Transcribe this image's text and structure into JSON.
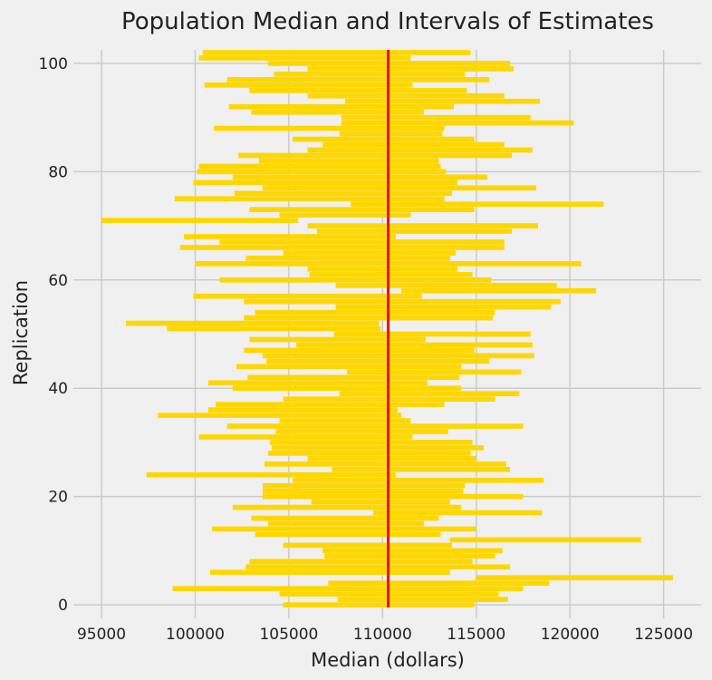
{
  "chart_data": {
    "type": "bar",
    "title": "Population Median and Intervals of Estimates",
    "xlabel": "Median (dollars)",
    "ylabel": "Replication",
    "xlim": [
      93500,
      127000
    ],
    "ylim": [
      -2.5,
      102.5
    ],
    "x_ticks": [
      95000,
      100000,
      105000,
      110000,
      115000,
      120000,
      125000
    ],
    "y_ticks": [
      0,
      20,
      40,
      60,
      80,
      100
    ],
    "grid": true,
    "legend": "none",
    "bar_color": "#FFD700",
    "reference_line": {
      "value": 110300,
      "color": "#ff0000"
    },
    "intervals": [
      [
        104700,
        114900
      ],
      [
        107600,
        116700
      ],
      [
        104500,
        116200
      ],
      [
        98800,
        117500
      ],
      [
        107100,
        118900
      ],
      [
        115000,
        125500
      ],
      [
        100800,
        113600
      ],
      [
        102700,
        116800
      ],
      [
        102900,
        114800
      ],
      [
        106900,
        116000
      ],
      [
        106800,
        116400
      ],
      [
        104700,
        113700
      ],
      [
        113600,
        123800
      ],
      [
        103200,
        113100
      ],
      [
        100900,
        115000
      ],
      [
        103900,
        112200
      ],
      [
        103000,
        113000
      ],
      [
        109500,
        118500
      ],
      [
        102000,
        114200
      ],
      [
        106200,
        113600
      ],
      [
        103600,
        117500
      ],
      [
        103600,
        114300
      ],
      [
        103600,
        114400
      ],
      [
        105200,
        118600
      ],
      [
        97400,
        110700
      ],
      [
        107300,
        116800
      ],
      [
        103700,
        116600
      ],
      [
        106000,
        115000
      ],
      [
        103900,
        114700
      ],
      [
        104100,
        115400
      ],
      [
        104000,
        114800
      ],
      [
        100200,
        111600
      ],
      [
        104300,
        113500
      ],
      [
        101700,
        117500
      ],
      [
        104500,
        111500
      ],
      [
        98000,
        111000
      ],
      [
        100700,
        110800
      ],
      [
        101100,
        113300
      ],
      [
        104700,
        116000
      ],
      [
        107700,
        117300
      ],
      [
        102000,
        114200
      ],
      [
        100700,
        112400
      ],
      [
        102800,
        114100
      ],
      [
        108100,
        117400
      ],
      [
        102200,
        114200
      ],
      [
        103800,
        115700
      ],
      [
        103600,
        118100
      ],
      [
        102600,
        114900
      ],
      [
        105400,
        118000
      ],
      [
        102900,
        112300
      ],
      [
        107400,
        117900
      ],
      [
        98500,
        109900
      ],
      [
        96300,
        109800
      ],
      [
        102600,
        115900
      ],
      [
        103200,
        116000
      ],
      [
        107500,
        119000
      ],
      [
        102600,
        119500
      ],
      [
        99900,
        112100
      ],
      [
        111000,
        121400
      ],
      [
        107500,
        119300
      ],
      [
        101300,
        115800
      ],
      [
        106100,
        114800
      ],
      [
        106000,
        114000
      ],
      [
        100000,
        120600
      ],
      [
        102700,
        113600
      ],
      [
        104700,
        113900
      ],
      [
        99200,
        116500
      ],
      [
        101300,
        116500
      ],
      [
        99400,
        110700
      ],
      [
        106500,
        116900
      ],
      [
        106000,
        118300
      ],
      [
        95000,
        105500
      ],
      [
        104500,
        111500
      ],
      [
        102900,
        114900
      ],
      [
        108300,
        121800
      ],
      [
        98900,
        113300
      ],
      [
        102100,
        113700
      ],
      [
        103600,
        118200
      ],
      [
        99900,
        114000
      ],
      [
        102000,
        115600
      ],
      [
        100100,
        113400
      ],
      [
        100200,
        113100
      ],
      [
        103400,
        113000
      ],
      [
        102300,
        116900
      ],
      [
        106000,
        118000
      ],
      [
        106800,
        116500
      ],
      [
        105200,
        114900
      ],
      [
        107700,
        113200
      ],
      [
        101000,
        113300
      ],
      [
        107800,
        120200
      ],
      [
        107800,
        117900
      ],
      [
        103000,
        112200
      ],
      [
        101800,
        113800
      ],
      [
        108000,
        118400
      ],
      [
        106000,
        116500
      ],
      [
        102900,
        114500
      ],
      [
        100500,
        111600
      ],
      [
        101700,
        115700
      ],
      [
        104200,
        114400
      ],
      [
        106000,
        117000
      ],
      [
        103900,
        116800
      ],
      [
        100200,
        111500
      ],
      [
        100400,
        114700
      ]
    ]
  }
}
